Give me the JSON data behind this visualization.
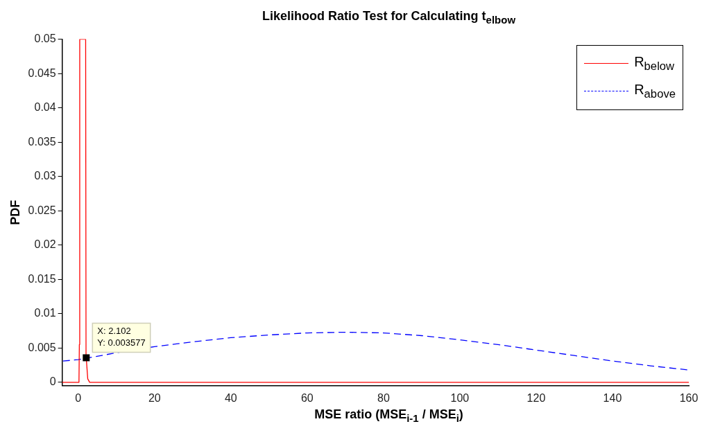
{
  "chart_data": {
    "type": "line",
    "title": "Likelihood Ratio Test for Calculating t$_{elbow}$",
    "xlabel": "MSE ratio (MSE$_{i-1}$ / MSE$_{i}$)",
    "ylabel": "PDF",
    "xlim": [
      -4.2,
      160
    ],
    "xticks": [
      0,
      20,
      40,
      60,
      80,
      100,
      120,
      140,
      160
    ],
    "ylim": [
      -0.0005,
      0.05
    ],
    "yticks": [
      0,
      0.005,
      0.01,
      0.015,
      0.02,
      0.025,
      0.03,
      0.035,
      0.04,
      0.045,
      0.05
    ],
    "grid": false,
    "legend": "top right",
    "marker": "none",
    "series": [
      {
        "name": "R$_{below}$",
        "color": "#ff0000",
        "line_style": "solid",
        "x": [
          -4.2,
          0.2,
          0.3,
          0.4,
          1.95,
          2.05,
          2.5,
          3,
          160
        ],
        "values": [
          0,
          0,
          0.0055,
          0.05,
          0.05,
          0.004,
          0.0005,
          0,
          0
        ]
      },
      {
        "name": "R$_{above}$",
        "color": "#0000ff",
        "line_style": "dashed",
        "x": [
          -4,
          0,
          10,
          20,
          30,
          40,
          50,
          60,
          70,
          80,
          90,
          100,
          110,
          120,
          130,
          140,
          150,
          160
        ],
        "values": [
          0.0031,
          0.0033,
          0.0043,
          0.0052,
          0.0059,
          0.0065,
          0.0069,
          0.0072,
          0.0073,
          0.0072,
          0.0068,
          0.0062,
          0.0055,
          0.0047,
          0.0039,
          0.0031,
          0.0024,
          0.0018
        ]
      }
    ],
    "annotations": [
      {
        "text": "X: 2.102\nY: 0.003577",
        "x": 2.102,
        "y": 0.003577
      }
    ]
  }
}
